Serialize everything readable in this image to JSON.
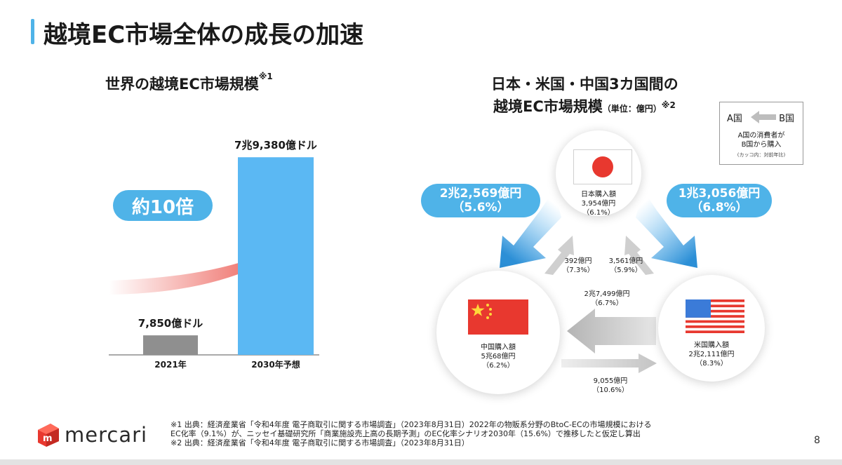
{
  "page": {
    "title": "越境EC市場全体の成長の加速",
    "page_number": "8",
    "accent_color": "#4fb3e8"
  },
  "left": {
    "title": "世界の越境EC市場規模",
    "title_note": "※1",
    "multiplier_label": "約10倍"
  },
  "chart_data": {
    "type": "bar",
    "categories": [
      "2021年",
      "2030年予想"
    ],
    "values": [
      7850,
      79380
    ],
    "data_labels": [
      "7,850億ドル",
      "7兆9,380億ドル"
    ],
    "unit": "億ドル",
    "colors": [
      "#8f8f8f",
      "#5bb8f3"
    ],
    "ylim": [
      0,
      80000
    ]
  },
  "right": {
    "title_line1": "日本・米国・中国3カ国間の",
    "title_line2": "越境EC市場規模",
    "unit_note": "（単位：億円）",
    "title_note": "※2",
    "legend": {
      "a_label": "A国",
      "b_label": "B国",
      "desc_line1": "A国の消費者が",
      "desc_line2": "B国から購入",
      "note": "(カッコ内：対前年比)"
    },
    "nodes": {
      "japan": {
        "line1": "日本購入額",
        "line2": "3,954億円",
        "line3": "（6.1%）",
        "flag": "japan-flag"
      },
      "china": {
        "line1": "中国購入額",
        "line2": "5兆68億円",
        "line3": "（6.2%）",
        "flag": "china-flag"
      },
      "us": {
        "line1": "米国購入額",
        "line2": "2兆2,111億円",
        "line3": "（8.3%）",
        "flag": "us-flag"
      }
    },
    "flows": {
      "china_from_japan": {
        "value": "2兆2,569億円",
        "growth": "（5.6%）"
      },
      "us_from_japan": {
        "value": "1兆3,056億円",
        "growth": "（6.8%）"
      },
      "japan_from_china": {
        "value": "392億円",
        "growth": "（7.3%）"
      },
      "japan_from_us": {
        "value": "3,561億円",
        "growth": "（5.9%）"
      },
      "china_from_us": {
        "value": "2兆7,499億円",
        "growth": "（6.7%）"
      },
      "us_from_china": {
        "value": "9,055億円",
        "growth": "（10.6%）"
      }
    }
  },
  "footer": {
    "logo_text": "mercari",
    "logo_color": "#e8382f",
    "note1_line1": "※1 出典：経済産業省「令和4年度 電子商取引に関する市場調査」（2023年8月31日）2022年の物販系分野のBtoC-ECの市場規模における",
    "note1_line2": "EC化率（9.1%）が、ニッセイ基礎研究所「商業施設売上高の長期予測」のEC化率シナリオ2030年（15.6%）で推移したと仮定し算出",
    "note2": "※2 出典：経済産業省「令和4年度 電子商取引に関する市場調査」（2023年8月31日）"
  }
}
